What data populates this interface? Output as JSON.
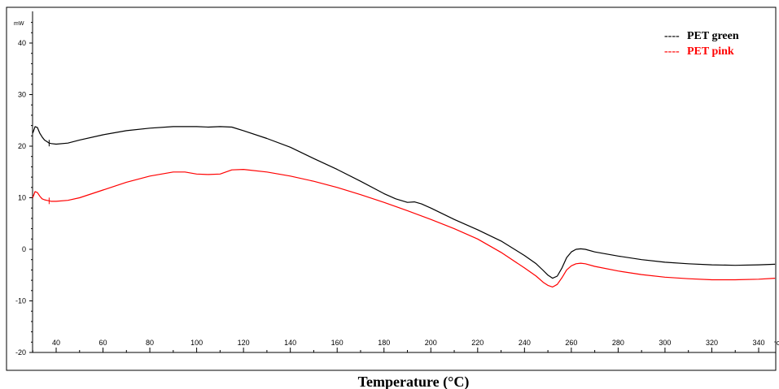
{
  "chart_data": {
    "type": "line",
    "title": "",
    "xlabel": "Temperature (°C)",
    "ylabel": "",
    "y_unit": "mW",
    "x_unit": "°C",
    "xlim": [
      30,
      347
    ],
    "ylim": [
      -20,
      45
    ],
    "x_ticks": [
      40,
      60,
      80,
      100,
      120,
      140,
      160,
      180,
      200,
      220,
      240,
      260,
      280,
      300,
      320,
      340
    ],
    "y_ticks": [
      -20,
      -10,
      0,
      10,
      20,
      30,
      40
    ],
    "grid": false,
    "legend_position": "top-right",
    "legend_prefix": "----",
    "series": [
      {
        "name": "PET green",
        "color": "#000000",
        "x": [
          30,
          31,
          32,
          33,
          34,
          35,
          36,
          37,
          38,
          40,
          45,
          50,
          60,
          70,
          80,
          90,
          100,
          105,
          110,
          115,
          120,
          130,
          140,
          150,
          160,
          170,
          180,
          185,
          190,
          193,
          196,
          200,
          210,
          220,
          230,
          240,
          245,
          248,
          250,
          252,
          254,
          256,
          258,
          260,
          262,
          264,
          266,
          270,
          280,
          290,
          300,
          310,
          320,
          330,
          340,
          347
        ],
        "y": [
          22.5,
          23.8,
          23.6,
          22.5,
          21.8,
          21.2,
          20.9,
          20.6,
          20.5,
          20.4,
          20.6,
          21.2,
          22.2,
          23.0,
          23.5,
          23.8,
          23.8,
          23.7,
          23.8,
          23.7,
          23.0,
          21.5,
          19.8,
          17.6,
          15.5,
          13.2,
          10.8,
          9.8,
          9.1,
          9.2,
          8.8,
          8.0,
          5.8,
          3.8,
          1.6,
          -1.2,
          -2.8,
          -4.1,
          -5.0,
          -5.6,
          -5.2,
          -3.6,
          -1.6,
          -0.5,
          0.0,
          0.1,
          0.0,
          -0.5,
          -1.3,
          -2.0,
          -2.5,
          -2.8,
          -3.0,
          -3.1,
          -3.0,
          -2.9
        ]
      },
      {
        "name": "PET pink",
        "color": "#ff0000",
        "x": [
          30,
          31,
          32,
          33,
          34,
          35,
          36,
          37,
          38,
          40,
          45,
          50,
          60,
          70,
          80,
          90,
          95,
          100,
          105,
          110,
          115,
          120,
          130,
          140,
          150,
          160,
          170,
          180,
          190,
          200,
          210,
          220,
          230,
          240,
          245,
          248,
          250,
          252,
          254,
          256,
          258,
          260,
          262,
          264,
          266,
          270,
          280,
          290,
          300,
          310,
          320,
          330,
          340,
          347
        ],
        "y": [
          10.0,
          11.2,
          11.0,
          10.3,
          9.8,
          9.6,
          9.5,
          9.4,
          9.3,
          9.3,
          9.5,
          10.0,
          11.5,
          13.0,
          14.2,
          15.0,
          15.0,
          14.6,
          14.5,
          14.6,
          15.4,
          15.5,
          15.0,
          14.2,
          13.2,
          12.0,
          10.6,
          9.1,
          7.5,
          5.8,
          4.0,
          2.0,
          -0.6,
          -3.6,
          -5.2,
          -6.4,
          -7.0,
          -7.3,
          -6.8,
          -5.5,
          -4.0,
          -3.2,
          -2.8,
          -2.7,
          -2.8,
          -3.3,
          -4.2,
          -4.9,
          -5.4,
          -5.7,
          -5.9,
          -5.9,
          -5.8,
          -5.6
        ]
      }
    ]
  }
}
